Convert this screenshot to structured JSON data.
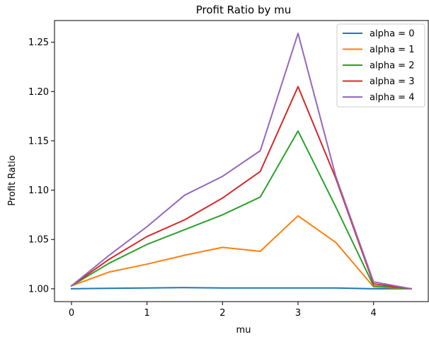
{
  "chart_data": {
    "type": "line",
    "title": "Profit Ratio by mu",
    "xlabel": "mu",
    "ylabel": "Profit Ratio",
    "x": [
      0,
      0.5,
      1,
      1.5,
      2,
      2.5,
      3,
      3.5,
      4,
      4.5
    ],
    "xlim": [
      -0.225,
      4.725
    ],
    "ylim": [
      0.987,
      1.272
    ],
    "xticks": [
      0,
      1,
      2,
      3,
      4
    ],
    "xtick_labels": [
      "0",
      "1",
      "2",
      "3",
      "4"
    ],
    "yticks": [
      1.0,
      1.05,
      1.1,
      1.15,
      1.2,
      1.25
    ],
    "ytick_labels": [
      "1.00",
      "1.05",
      "1.10",
      "1.15",
      "1.20",
      "1.25"
    ],
    "grid": false,
    "legend_position": "top-right",
    "series": [
      {
        "name": "alpha = 0",
        "color": "#1f77b4",
        "values": [
          1.0,
          1.0005,
          1.0008,
          1.0012,
          1.0008,
          1.0008,
          1.0008,
          1.0008,
          1.0,
          1.0
        ]
      },
      {
        "name": "alpha = 1",
        "color": "#ff7f0e",
        "values": [
          1.003,
          1.017,
          1.025,
          1.034,
          1.042,
          1.038,
          1.074,
          1.047,
          1.002,
          1.0
        ]
      },
      {
        "name": "alpha = 2",
        "color": "#2ca02c",
        "values": [
          1.003,
          1.026,
          1.045,
          1.06,
          1.075,
          1.093,
          1.16,
          1.083,
          1.003,
          1.0
        ]
      },
      {
        "name": "alpha = 3",
        "color": "#d62728",
        "values": [
          1.003,
          1.03,
          1.053,
          1.07,
          1.092,
          1.119,
          1.205,
          1.112,
          1.005,
          1.0
        ]
      },
      {
        "name": "alpha = 4",
        "color": "#9467bd",
        "values": [
          1.003,
          1.034,
          1.063,
          1.095,
          1.114,
          1.14,
          1.259,
          1.114,
          1.007,
          1.0
        ]
      }
    ]
  }
}
